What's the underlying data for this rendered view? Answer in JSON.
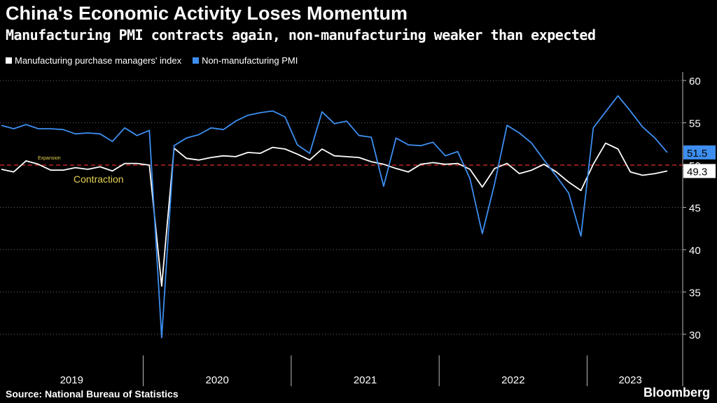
{
  "chart_data": {
    "type": "line",
    "title": "China's Economic Activity Loses Momentum",
    "subtitle": "Manufacturing PMI contracts again, non-manufacturing weaker than expected",
    "x_start": "2019-01",
    "x_end": "2023-06",
    "year_labels": [
      "2019",
      "2020",
      "2021",
      "2022",
      "2023"
    ],
    "ylim": [
      27.5,
      61
    ],
    "y_ticks": [
      30,
      35,
      40,
      45,
      50,
      55,
      60
    ],
    "threshold": 50,
    "threshold_color": "#e0302b",
    "annotations": {
      "above": "Expansion",
      "below": "Contraction"
    },
    "annotation_color": "#e6d250",
    "series": [
      {
        "name": "Manufacturing purchase managers' index",
        "color": "#ffffff",
        "last_label": "49.3",
        "values": [
          49.5,
          49.2,
          50.5,
          50.1,
          49.4,
          49.4,
          49.7,
          49.5,
          49.8,
          49.3,
          50.2,
          50.2,
          50.0,
          35.7,
          52.0,
          50.8,
          50.6,
          50.9,
          51.1,
          51.0,
          51.5,
          51.4,
          52.1,
          51.9,
          51.3,
          50.6,
          51.9,
          51.1,
          51.0,
          50.9,
          50.4,
          50.1,
          49.6,
          49.2,
          50.1,
          50.3,
          50.1,
          50.2,
          49.5,
          47.4,
          49.6,
          50.2,
          49.0,
          49.4,
          50.1,
          49.2,
          48.0,
          47.0,
          50.1,
          52.6,
          51.9,
          49.2,
          48.8,
          49.0,
          49.3
        ]
      },
      {
        "name": "Non-manufacturing PMI",
        "color": "#3d8ef0",
        "last_label": "51.5",
        "values": [
          54.7,
          54.3,
          54.8,
          54.3,
          54.3,
          54.2,
          53.7,
          53.8,
          53.7,
          52.8,
          54.4,
          53.5,
          54.1,
          29.6,
          52.3,
          53.2,
          53.6,
          54.4,
          54.2,
          55.2,
          55.9,
          56.2,
          56.4,
          55.7,
          52.4,
          51.4,
          56.3,
          54.9,
          55.2,
          53.5,
          53.3,
          47.5,
          53.2,
          52.4,
          52.3,
          52.7,
          51.1,
          51.6,
          48.4,
          41.9,
          47.8,
          54.7,
          53.8,
          52.6,
          50.6,
          48.7,
          46.7,
          41.6,
          54.4,
          56.3,
          58.2,
          56.4,
          54.5,
          53.2,
          51.5
        ]
      }
    ]
  },
  "source": "Source: National Bureau of Statistics",
  "brand": "Bloomberg"
}
